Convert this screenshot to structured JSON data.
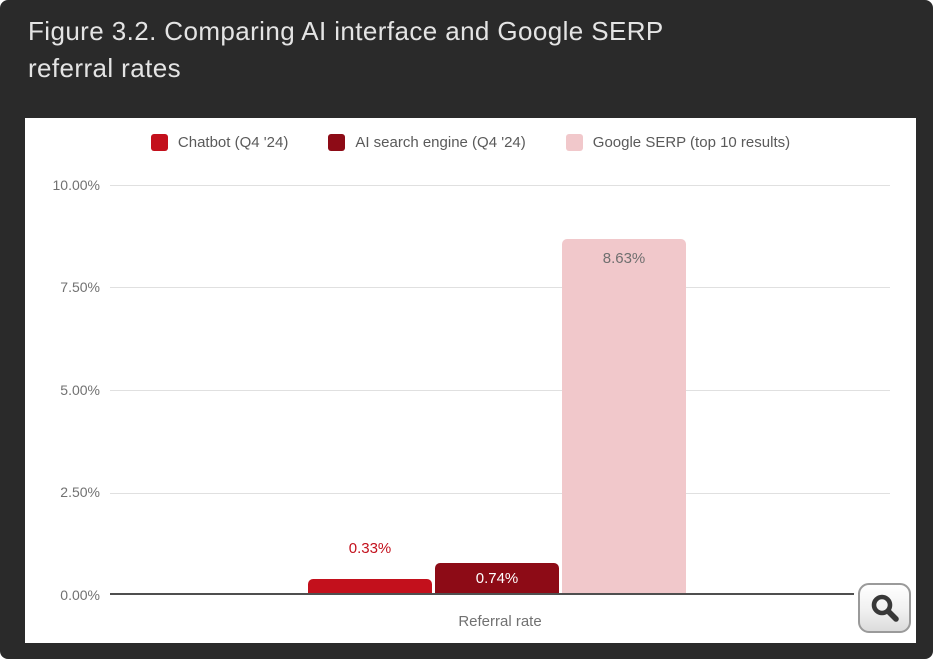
{
  "figure": {
    "title_line1": "Figure 3.2. Comparing AI interface and Google SERP",
    "title_line2": "referral rates"
  },
  "colors": {
    "bg": "#2a2a2a",
    "panel": "#ffffff",
    "grid": "#e0e0e0",
    "axis": "#4f4f4f",
    "ticktext": "#717171",
    "legendtext": "#5a5a5a",
    "titletext": "#e4e4e4"
  },
  "chart_data": {
    "type": "bar",
    "title": "Figure 3.2. Comparing AI interface and Google SERP referral rates",
    "categories": [
      "Referral rate"
    ],
    "series": [
      {
        "name": "Chatbot (Q4 '24)",
        "values": [
          0.33
        ],
        "color": "#c3101c",
        "data_label": "0.33%",
        "label_color": "#c3101c",
        "label_position": "above"
      },
      {
        "name": "AI search engine (Q4 '24)",
        "values": [
          0.74
        ],
        "color": "#8d0b16",
        "data_label": "0.74%",
        "label_color": "#ffffff",
        "label_position": "inside"
      },
      {
        "name": "Google SERP (top 10 results)",
        "values": [
          8.63
        ],
        "color": "#f1c8cb",
        "data_label": "8.63%",
        "label_color": "#6f6f6f",
        "label_position": "inside"
      }
    ],
    "xlabel": "Referral rate",
    "ylabel": "",
    "ylim": [
      0,
      10
    ],
    "grid": true,
    "legend_position": "top",
    "yticks": [
      {
        "value": 10.0,
        "label": "10.00%"
      },
      {
        "value": 7.5,
        "label": "7.50%"
      },
      {
        "value": 5.0,
        "label": "5.00%"
      },
      {
        "value": 2.5,
        "label": "2.50%"
      },
      {
        "value": 0.0,
        "label": "0.00%"
      }
    ]
  }
}
